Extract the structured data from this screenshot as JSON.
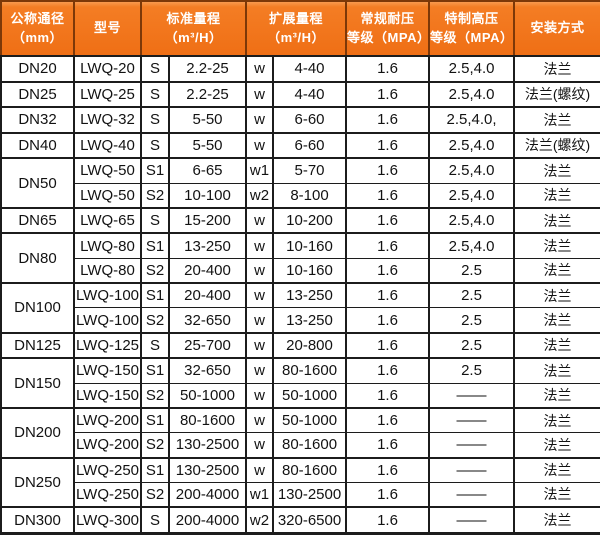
{
  "table": {
    "header": {
      "columns": [
        {
          "line1": "公称通径",
          "line2": "（mm）"
        },
        {
          "line1": "型号",
          "line2": ""
        },
        {
          "line1": "标准量程",
          "line2": "（m³/H）"
        },
        {
          "line1": "扩展量程",
          "line2": "（m³/H）"
        },
        {
          "line1": "常规耐压",
          "line2": "等级（MPA）"
        },
        {
          "line1": "特制高压",
          "line2": "等级（MPA）"
        },
        {
          "line1": "安装方式",
          "line2": ""
        }
      ]
    },
    "groups": [
      {
        "diameter": "DN20",
        "rows": [
          {
            "model": "LWQ-20",
            "std_code": "S",
            "std_range": "2.2-25",
            "ext_code": "w",
            "ext_range": "4-40",
            "pressure_regular": "1.6",
            "pressure_high": "2.5,4.0",
            "install": "法兰"
          }
        ]
      },
      {
        "diameter": "DN25",
        "rows": [
          {
            "model": "LWQ-25",
            "std_code": "S",
            "std_range": "2.2-25",
            "ext_code": "w",
            "ext_range": "4-40",
            "pressure_regular": "1.6",
            "pressure_high": "2.5,4.0",
            "install": "法兰(螺纹)"
          }
        ]
      },
      {
        "diameter": "DN32",
        "rows": [
          {
            "model": "LWQ-32",
            "std_code": "S",
            "std_range": "5-50",
            "ext_code": "w",
            "ext_range": "6-60",
            "pressure_regular": "1.6",
            "pressure_high": "2.5,4.0,",
            "install": "法兰"
          }
        ]
      },
      {
        "diameter": "DN40",
        "rows": [
          {
            "model": "LWQ-40",
            "std_code": "S",
            "std_range": "5-50",
            "ext_code": "w",
            "ext_range": "6-60",
            "pressure_regular": "1.6",
            "pressure_high": "2.5,4.0",
            "install": "法兰(螺纹)"
          }
        ]
      },
      {
        "diameter": "DN50",
        "rows": [
          {
            "model": "LWQ-50",
            "std_code": "S1",
            "std_range": "6-65",
            "ext_code": "w1",
            "ext_range": "5-70",
            "pressure_regular": "1.6",
            "pressure_high": "2.5,4.0",
            "install": "法兰"
          },
          {
            "model": "LWQ-50",
            "std_code": "S2",
            "std_range": "10-100",
            "ext_code": "w2",
            "ext_range": "8-100",
            "pressure_regular": "1.6",
            "pressure_high": "2.5,4.0",
            "install": "法兰"
          }
        ]
      },
      {
        "diameter": "DN65",
        "rows": [
          {
            "model": "LWQ-65",
            "std_code": "S",
            "std_range": "15-200",
            "ext_code": "w",
            "ext_range": "10-200",
            "pressure_regular": "1.6",
            "pressure_high": "2.5,4.0",
            "install": "法兰"
          }
        ]
      },
      {
        "diameter": "DN80",
        "rows": [
          {
            "model": "LWQ-80",
            "std_code": "S1",
            "std_range": "13-250",
            "ext_code": "w",
            "ext_range": "10-160",
            "pressure_regular": "1.6",
            "pressure_high": "2.5,4.0",
            "install": "法兰"
          },
          {
            "model": "LWQ-80",
            "std_code": "S2",
            "std_range": "20-400",
            "ext_code": "w",
            "ext_range": "10-160",
            "pressure_regular": "1.6",
            "pressure_high": "2.5",
            "install": "法兰"
          }
        ]
      },
      {
        "diameter": "DN100",
        "rows": [
          {
            "model": "LWQ-100",
            "std_code": "S1",
            "std_range": "20-400",
            "ext_code": "w",
            "ext_range": "13-250",
            "pressure_regular": "1.6",
            "pressure_high": "2.5",
            "install": "法兰"
          },
          {
            "model": "LWQ-100",
            "std_code": "S2",
            "std_range": "32-650",
            "ext_code": "w",
            "ext_range": "13-250",
            "pressure_regular": "1.6",
            "pressure_high": "2.5",
            "install": "法兰"
          }
        ]
      },
      {
        "diameter": "DN125",
        "rows": [
          {
            "model": "LWQ-125",
            "std_code": "S",
            "std_range": "25-700",
            "ext_code": "w",
            "ext_range": "20-800",
            "pressure_regular": "1.6",
            "pressure_high": "2.5",
            "install": "法兰"
          }
        ]
      },
      {
        "diameter": "DN150",
        "rows": [
          {
            "model": "LWQ-150",
            "std_code": "S1",
            "std_range": "32-650",
            "ext_code": "w",
            "ext_range": "80-1600",
            "pressure_regular": "1.6",
            "pressure_high": "2.5",
            "install": "法兰"
          },
          {
            "model": "LWQ-150",
            "std_code": "S2",
            "std_range": "50-1000",
            "ext_code": "w",
            "ext_range": "50-1000",
            "pressure_regular": "1.6",
            "pressure_high": "——",
            "install": "法兰"
          }
        ]
      },
      {
        "diameter": "DN200",
        "rows": [
          {
            "model": "LWQ-200",
            "std_code": "S1",
            "std_range": "80-1600",
            "ext_code": "w",
            "ext_range": "50-1000",
            "pressure_regular": "1.6",
            "pressure_high": "——",
            "install": "法兰"
          },
          {
            "model": "LWQ-200",
            "std_code": "S2",
            "std_range": "130-2500",
            "ext_code": "w",
            "ext_range": "80-1600",
            "pressure_regular": "1.6",
            "pressure_high": "——",
            "install": "法兰"
          }
        ]
      },
      {
        "diameter": "DN250",
        "rows": [
          {
            "model": "LWQ-250",
            "std_code": "S1",
            "std_range": "130-2500",
            "ext_code": "w",
            "ext_range": "80-1600",
            "pressure_regular": "1.6",
            "pressure_high": "——",
            "install": "法兰"
          },
          {
            "model": "LWQ-250",
            "std_code": "S2",
            "std_range": "200-4000",
            "ext_code": "w1",
            "ext_range": "130-2500",
            "pressure_regular": "1.6",
            "pressure_high": "——",
            "install": "法兰"
          }
        ]
      },
      {
        "diameter": "DN300",
        "rows": [
          {
            "model": "LWQ-300",
            "std_code": "S",
            "std_range": "200-4000",
            "ext_code": "w2",
            "ext_range": "320-6500",
            "pressure_regular": "1.6",
            "pressure_high": "——",
            "install": "法兰"
          }
        ]
      }
    ]
  },
  "colors": {
    "header_bg": "#ef6f15",
    "header_bg_light": "#f89a4e",
    "header_border": "#7d3808",
    "header_text": "#ffffff",
    "grid": "#1c1c1c",
    "body_text": "#121212",
    "body_bg": "#ffffff"
  }
}
